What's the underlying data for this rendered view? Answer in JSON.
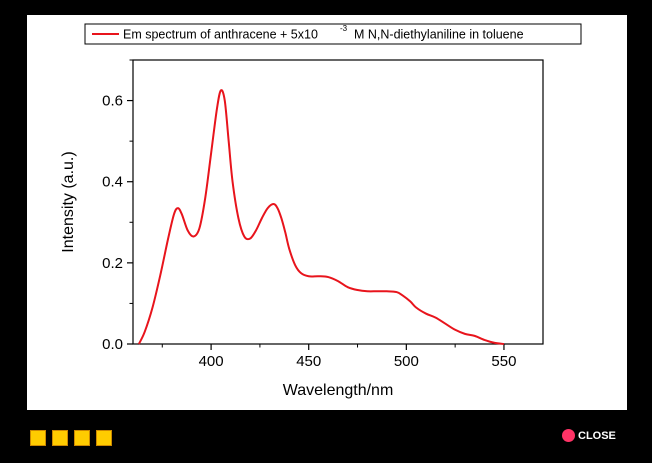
{
  "chart_data": {
    "type": "line",
    "xlabel": "Wavelength/nm",
    "ylabel": "Intensity (a.u.)",
    "xlim": [
      360,
      570
    ],
    "ylim": [
      0,
      0.7
    ],
    "x_ticks": [
      400,
      450,
      500,
      550
    ],
    "y_ticks": [
      0.0,
      0.2,
      0.4,
      0.6
    ],
    "x_tick_labels": [
      "400",
      "450",
      "500",
      "550"
    ],
    "y_tick_labels": [
      "0.0",
      "0.2",
      "0.4",
      "0.6"
    ],
    "legend_position": "top",
    "series": [
      {
        "name": "Em spectrum of anthracene + 5x10 -3 M N,N-diethylaniline in toluene",
        "color": "#e8141c",
        "x": [
          363,
          366,
          370,
          374,
          378,
          381,
          383,
          385,
          388,
          391,
          394,
          397,
          400,
          403,
          405,
          407,
          409,
          411,
          414,
          417,
          420,
          423,
          426,
          429,
          432,
          434,
          436,
          438,
          440,
          443,
          446,
          450,
          455,
          460,
          465,
          470,
          475,
          480,
          485,
          490,
          495,
          498,
          502,
          505,
          510,
          515,
          520,
          525,
          530,
          535,
          540,
          545,
          550
        ],
        "y": [
          0.0,
          0.03,
          0.09,
          0.17,
          0.26,
          0.32,
          0.335,
          0.32,
          0.28,
          0.265,
          0.285,
          0.36,
          0.47,
          0.58,
          0.625,
          0.6,
          0.5,
          0.4,
          0.31,
          0.265,
          0.26,
          0.28,
          0.31,
          0.335,
          0.345,
          0.335,
          0.31,
          0.275,
          0.235,
          0.195,
          0.175,
          0.167,
          0.167,
          0.165,
          0.155,
          0.14,
          0.133,
          0.13,
          0.13,
          0.13,
          0.128,
          0.12,
          0.105,
          0.09,
          0.075,
          0.065,
          0.05,
          0.035,
          0.025,
          0.02,
          0.01,
          0.003,
          0.0
        ]
      }
    ]
  },
  "legend": {
    "text_main": "Em spectrum of anthracene + 5x10",
    "text_sup": "-3",
    "text_tail": "M N,N-diethylaniline in toluene"
  },
  "nav": {
    "squares": [
      "",
      "",
      "",
      ""
    ],
    "close_label": "CLOSE",
    "accent": "#ffcc00",
    "close_color": "#ff3366"
  }
}
